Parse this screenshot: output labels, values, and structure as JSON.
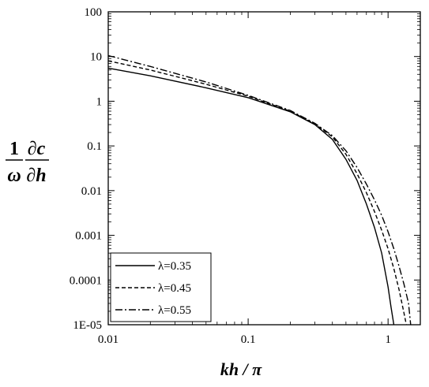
{
  "chart_data": {
    "type": "line",
    "xlabel": "kh / π",
    "ylabel": {
      "numerator_left": "1",
      "denominator_left": "ω",
      "numerator_right": "∂c",
      "denominator_right": "∂h"
    },
    "x_scale": "log",
    "y_scale": "log",
    "xlim": [
      0.01,
      1.7
    ],
    "ylim": [
      1e-05,
      100
    ],
    "x_ticks": [
      {
        "value": 0.01,
        "label": "0.01"
      },
      {
        "value": 0.1,
        "label": "0.1"
      },
      {
        "value": 1,
        "label": "1"
      }
    ],
    "y_ticks": [
      {
        "value": 100,
        "label": "100"
      },
      {
        "value": 10,
        "label": "10"
      },
      {
        "value": 1,
        "label": "1"
      },
      {
        "value": 0.1,
        "label": "0.1"
      },
      {
        "value": 0.01,
        "label": "0.01"
      },
      {
        "value": 0.001,
        "label": "0.001"
      },
      {
        "value": 0.0001,
        "label": "0.0001"
      },
      {
        "value": 1e-05,
        "label": "1E-05"
      }
    ],
    "grid": false,
    "legend_position": "bottom-left",
    "series": [
      {
        "name": "λ=0.35",
        "dash": "solid",
        "x": [
          0.01,
          0.02,
          0.05,
          0.1,
          0.2,
          0.3,
          0.4,
          0.5,
          0.6,
          0.7,
          0.8,
          0.9,
          1.0,
          1.05,
          1.1
        ],
        "y": [
          5.5,
          3.7,
          2.0,
          1.2,
          0.58,
          0.3,
          0.14,
          0.05,
          0.017,
          0.005,
          0.0015,
          0.0004,
          7e-05,
          2.5e-05,
          1e-05
        ]
      },
      {
        "name": "λ=0.45",
        "dash": "dashed",
        "x": [
          0.01,
          0.02,
          0.05,
          0.1,
          0.2,
          0.3,
          0.4,
          0.5,
          0.6,
          0.7,
          0.8,
          0.9,
          1.0,
          1.1,
          1.2,
          1.3,
          1.35
        ],
        "y": [
          8.0,
          5.0,
          2.4,
          1.3,
          0.6,
          0.31,
          0.16,
          0.065,
          0.024,
          0.009,
          0.0034,
          0.0013,
          0.0005,
          0.00018,
          6e-05,
          1.8e-05,
          1e-05
        ]
      },
      {
        "name": "λ=0.55",
        "dash": "dashdot",
        "x": [
          0.01,
          0.02,
          0.05,
          0.1,
          0.2,
          0.3,
          0.4,
          0.5,
          0.6,
          0.7,
          0.8,
          0.9,
          1.0,
          1.1,
          1.2,
          1.3,
          1.4,
          1.45
        ],
        "y": [
          10.5,
          6.0,
          2.7,
          1.35,
          0.62,
          0.32,
          0.17,
          0.078,
          0.033,
          0.014,
          0.0062,
          0.0028,
          0.0012,
          0.0005,
          0.0002,
          8e-05,
          3e-05,
          1e-05
        ]
      }
    ]
  }
}
